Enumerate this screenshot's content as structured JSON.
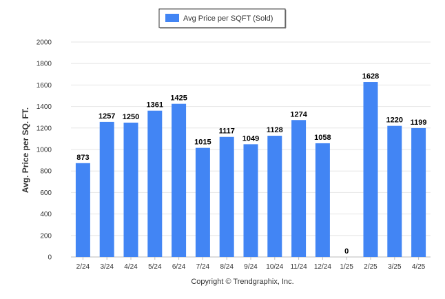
{
  "chart_data": {
    "type": "bar",
    "title": "",
    "xlabel": "",
    "ylabel": "Avg. Price per SQ. FT.",
    "categories": [
      "2/24",
      "3/24",
      "4/24",
      "5/24",
      "6/24",
      "7/24",
      "8/24",
      "9/24",
      "10/24",
      "11/24",
      "12/24",
      "1/25",
      "2/25",
      "3/25",
      "4/25"
    ],
    "series": [
      {
        "name": "Avg Price per SQFT (Sold)",
        "color": "#4285f4",
        "values": [
          873,
          1257,
          1250,
          1361,
          1425,
          1015,
          1117,
          1049,
          1128,
          1274,
          1058,
          0,
          1628,
          1220,
          1199
        ]
      }
    ],
    "ylim": [
      0,
      2000
    ],
    "yticks": [
      0,
      200,
      400,
      600,
      800,
      1000,
      1200,
      1400,
      1600,
      1800,
      2000
    ],
    "grid": true,
    "legend": "top-center"
  },
  "footer": "Copyright © Trendgraphix, Inc."
}
